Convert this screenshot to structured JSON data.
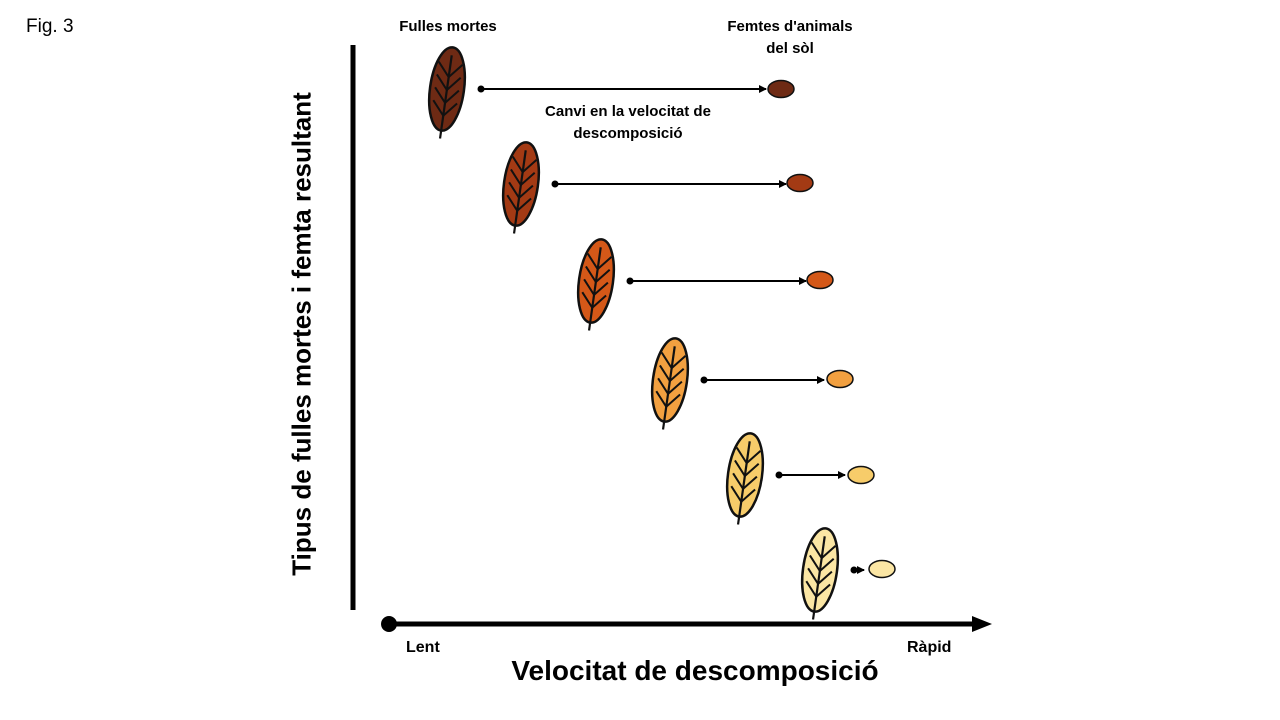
{
  "figure_label": "Fig. 3",
  "labels": {
    "dead_leaves": "Fulles mortes",
    "soil_animal_faeces": "Femtes d'animals\ndel sòl",
    "decomposition_change": "Canvi en la velocitat de\ndescomposició"
  },
  "axes": {
    "y_title": "Tipus de fulles mortes i femta resultant",
    "x_title": "Velocitat de descomposició",
    "x_slow": "Lent",
    "x_fast": "Ràpid"
  },
  "rows": [
    {
      "leaf_color": "#6e2a14",
      "faeces_color": "#6e2a14"
    },
    {
      "leaf_color": "#a33a14",
      "faeces_color": "#a33a14"
    },
    {
      "leaf_color": "#d45818",
      "faeces_color": "#d45818"
    },
    {
      "leaf_color": "#f2a040",
      "faeces_color": "#f2a040"
    },
    {
      "leaf_color": "#f7cc6a",
      "faeces_color": "#f7cc6a"
    },
    {
      "leaf_color": "#fbe6a4",
      "faeces_color": "#fbe6a4"
    }
  ]
}
